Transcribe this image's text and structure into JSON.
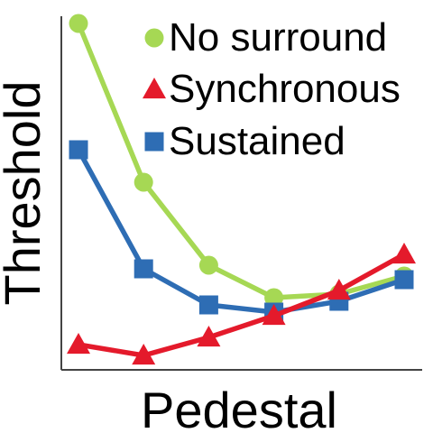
{
  "chart_data": {
    "type": "line",
    "xlabel": "Pedestal",
    "ylabel": "Threshold",
    "x": [
      1,
      2,
      3,
      4,
      5,
      6
    ],
    "ylim": [
      0,
      10
    ],
    "grid": false,
    "legend_placement": "top-right",
    "series": [
      {
        "name": "No surround",
        "values": [
          9.6,
          5.2,
          2.9,
          2.0,
          2.1,
          2.6
        ],
        "color": "#a6d854",
        "marker": "circle"
      },
      {
        "name": "Synchronous",
        "values": [
          0.7,
          0.4,
          0.9,
          1.5,
          2.2,
          3.2
        ],
        "color": "#e41a2b",
        "marker": "triangle"
      },
      {
        "name": "Sustained",
        "values": [
          6.1,
          2.8,
          1.8,
          1.6,
          1.9,
          2.5
        ],
        "color": "#2e6db4",
        "marker": "square"
      }
    ]
  }
}
